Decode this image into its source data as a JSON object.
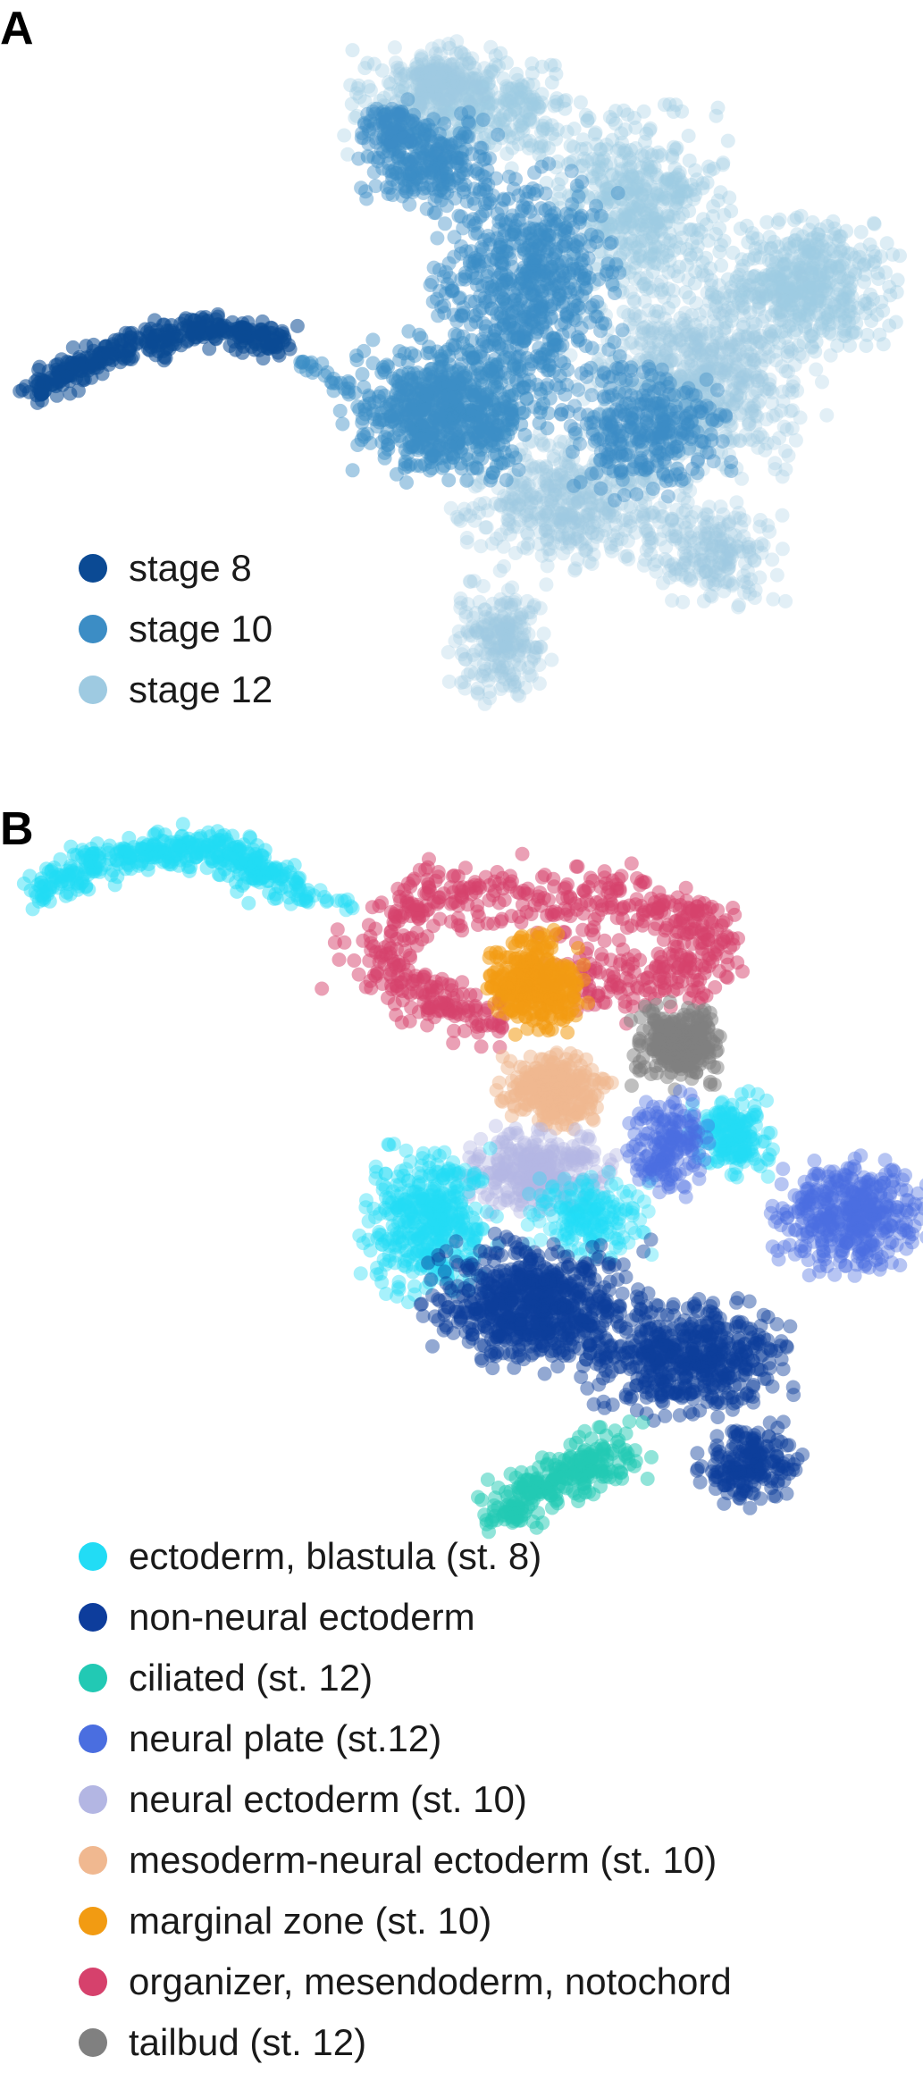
{
  "chart_data": [
    {
      "panel": "A",
      "type": "scatter",
      "title": "",
      "xlabel": "",
      "ylabel": "",
      "grid": false,
      "axes": false,
      "legend_placement": "bottom-left",
      "legend": [
        {
          "label": "stage 8",
          "color": "#0b4a94"
        },
        {
          "label": "stage 10",
          "color": "#3c8dc5"
        },
        {
          "label": "stage 12",
          "color": "#9ecae1"
        }
      ]
    },
    {
      "panel": "B",
      "type": "scatter",
      "title": "",
      "xlabel": "",
      "ylabel": "",
      "grid": false,
      "axes": false,
      "legend_placement": "bottom-left",
      "legend": [
        {
          "label": "ectoderm, blastula (st. 8)",
          "color": "#22dcf5"
        },
        {
          "label": "non-neural ectoderm",
          "color": "#0d3d9c"
        },
        {
          "label": "ciliated (st. 12)",
          "color": "#22c9b4"
        },
        {
          "label": "neural plate (st.12)",
          "color": "#4a6ee0"
        },
        {
          "label": "neural ectoderm (st. 10)",
          "color": "#b3b6e3"
        },
        {
          "label": "mesoderm-neural ectoderm (st. 10)",
          "color": "#f0b890"
        },
        {
          "label": "marginal zone (st. 10)",
          "color": "#f29b12"
        },
        {
          "label": "organizer, mesendoderm, notochord",
          "color": "#d6416c"
        },
        {
          "label": "tailbud (st. 12)",
          "color": "#808080"
        }
      ]
    }
  ]
}
